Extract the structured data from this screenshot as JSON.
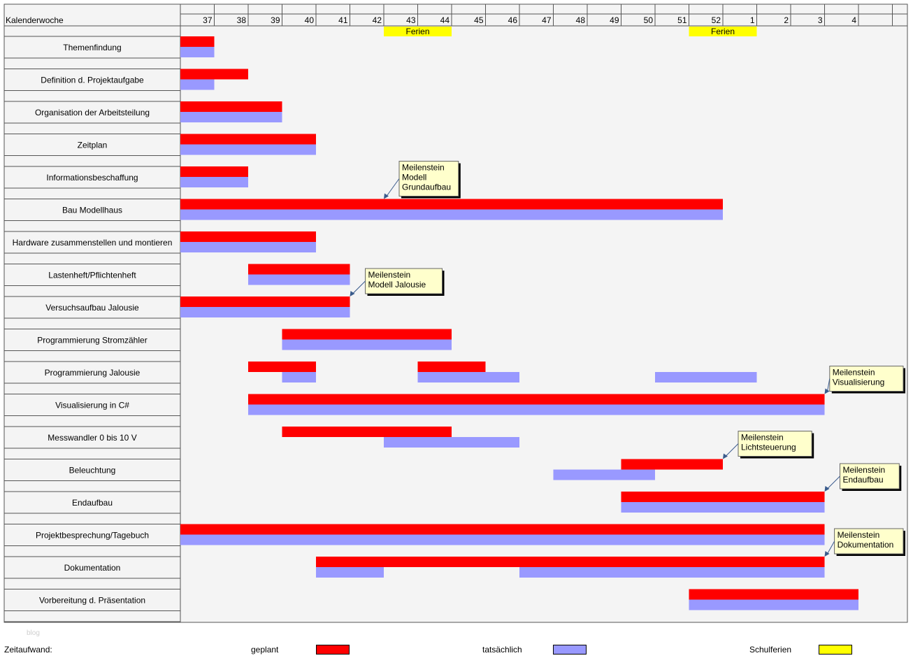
{
  "chart_data": {
    "type": "gantt",
    "header_label": "Kalenderwoche",
    "weeks": [
      "37",
      "38",
      "39",
      "40",
      "41",
      "42",
      "43",
      "44",
      "45",
      "46",
      "47",
      "48",
      "49",
      "50",
      "51",
      "52",
      "1",
      "2",
      "3",
      "4"
    ],
    "tasks": [
      {
        "label": "Themenfindung",
        "planned": [
          [
            0,
            1
          ]
        ],
        "actual": [
          [
            0,
            1
          ]
        ]
      },
      {
        "label": "Definition d. Projektaufgabe",
        "planned": [
          [
            0,
            2
          ]
        ],
        "actual": [
          [
            0,
            1
          ]
        ]
      },
      {
        "label": "Organisation der Arbeitsteilung",
        "planned": [
          [
            0,
            3
          ]
        ],
        "actual": [
          [
            0,
            3
          ]
        ]
      },
      {
        "label": "Zeitplan",
        "planned": [
          [
            0,
            4
          ]
        ],
        "actual": [
          [
            0,
            4
          ]
        ]
      },
      {
        "label": "Informationsbeschaffung",
        "planned": [
          [
            0,
            2
          ]
        ],
        "actual": [
          [
            0,
            2
          ]
        ]
      },
      {
        "label": "Bau Modellhaus",
        "planned": [
          [
            0,
            16
          ]
        ],
        "actual": [
          [
            0,
            16
          ]
        ]
      },
      {
        "label": "Hardware zusammenstellen und montieren",
        "planned": [
          [
            0,
            4
          ]
        ],
        "actual": [
          [
            0,
            4
          ]
        ]
      },
      {
        "label": "Lastenheft/Pflichtenheft",
        "planned": [
          [
            2,
            5
          ]
        ],
        "actual": [
          [
            2,
            5
          ]
        ]
      },
      {
        "label": "Versuchsaufbau Jalousie",
        "planned": [
          [
            0,
            5
          ]
        ],
        "actual": [
          [
            0,
            5
          ]
        ]
      },
      {
        "label": "Programmierung Stromzähler",
        "planned": [
          [
            3,
            8
          ]
        ],
        "actual": [
          [
            3,
            8
          ]
        ]
      },
      {
        "label": "Programmierung Jalousie",
        "planned": [
          [
            2,
            4
          ],
          [
            7,
            9
          ]
        ],
        "actual": [
          [
            3,
            4
          ],
          [
            7,
            10
          ],
          [
            14,
            17
          ]
        ]
      },
      {
        "label": "Visualisierung in C#",
        "planned": [
          [
            2,
            19
          ]
        ],
        "actual": [
          [
            2,
            19
          ]
        ]
      },
      {
        "label": "Messwandler 0 bis 10 V",
        "planned": [
          [
            3,
            8
          ]
        ],
        "actual": [
          [
            6,
            10
          ]
        ]
      },
      {
        "label": "Beleuchtung",
        "planned": [
          [
            13,
            16
          ]
        ],
        "actual": [
          [
            11,
            14
          ]
        ]
      },
      {
        "label": "Endaufbau",
        "planned": [
          [
            13,
            19
          ]
        ],
        "actual": [
          [
            13,
            19
          ]
        ]
      },
      {
        "label": "Projektbesprechung/Tagebuch",
        "planned": [
          [
            0,
            19
          ]
        ],
        "actual": [
          [
            0,
            19
          ]
        ]
      },
      {
        "label": "Dokumentation",
        "planned": [
          [
            4,
            19
          ]
        ],
        "actual": [
          [
            4,
            6
          ],
          [
            10,
            19
          ]
        ]
      },
      {
        "label": "Vorbereitung d. Präsentation",
        "planned": [
          [
            15,
            20
          ]
        ],
        "actual": [
          [
            15,
            20
          ]
        ]
      }
    ],
    "holidays": [
      {
        "label": "Ferien",
        "start": 6,
        "end": 8
      },
      {
        "label": "Ferien",
        "start": 15,
        "end": 17
      }
    ],
    "milestones": [
      {
        "lines": [
          "Meilenstein",
          "Modell",
          "Grundaufbau"
        ],
        "task": 5,
        "week": 6
      },
      {
        "lines": [
          "Meilenstein",
          "Modell Jalousie"
        ],
        "task": 8,
        "week": 5
      },
      {
        "lines": [
          "Meilenstein",
          "Visualisierung"
        ],
        "task": 11,
        "week": 19
      },
      {
        "lines": [
          "Meilenstein",
          "Lichtsteuerung"
        ],
        "task": 13,
        "week": 16
      },
      {
        "lines": [
          "Meilenstein",
          "Endaufbau"
        ],
        "task": 14,
        "week": 19
      },
      {
        "lines": [
          "Meilenstein",
          "Dokumentation"
        ],
        "task": 16,
        "week": 19
      }
    ],
    "colors": {
      "planned": "#ff0000",
      "actual": "#9999ff",
      "holiday": "#ffff00",
      "callout": "#ffffcc",
      "background": "#f4f4f4"
    }
  },
  "legend": {
    "title": "Zeitaufwand:",
    "planned_label": "geplant",
    "actual_label": "tatsächlich",
    "holiday_label": "Schulferien"
  },
  "watermark": "blog"
}
